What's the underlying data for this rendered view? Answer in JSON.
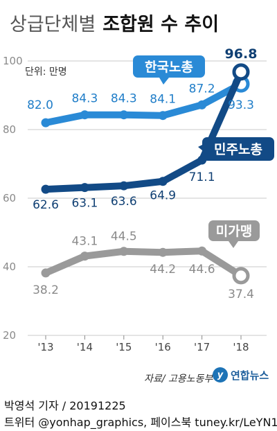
{
  "header": {
    "title_light": "상급단체별",
    "title_bold": "조합원 수 추이"
  },
  "chart_data": {
    "type": "line",
    "title": "상급단체별 조합원 수 추이",
    "unit_label": "단위: 만명",
    "categories": [
      "'13",
      "'14",
      "'15",
      "'16",
      "'17",
      "'18"
    ],
    "ylim": [
      20,
      100
    ],
    "yticks": [
      20,
      40,
      60,
      80,
      100
    ],
    "grid": true,
    "series": [
      {
        "name": "한국노총",
        "values": [
          82.0,
          84.3,
          84.3,
          84.1,
          87.2,
          93.3
        ],
        "labels": [
          "82.0",
          "84.3",
          "84.3",
          "84.1",
          "87.2",
          "93.3"
        ],
        "color": "#2a8ad6",
        "label_color": "#1f7dc8"
      },
      {
        "name": "민주노총",
        "values": [
          62.6,
          63.1,
          63.6,
          64.9,
          71.1,
          96.8
        ],
        "labels": [
          "62.6",
          "63.1",
          "63.6",
          "64.9",
          "71.1",
          "96.8"
        ],
        "color": "#124a86",
        "label_color": "#0f3f73"
      },
      {
        "name": "미가맹",
        "values": [
          38.2,
          43.1,
          44.5,
          44.2,
          44.6,
          37.4
        ],
        "labels": [
          "38.2",
          "43.1",
          "44.5",
          "44.2",
          "44.6",
          "37.4"
        ],
        "color": "#9a9a9a",
        "label_color": "#8a8a8a"
      }
    ]
  },
  "footer": {
    "source": "자료/ 고용노동부",
    "logo_text": "연합뉴스",
    "byline": "박영석 기자 /  20191225",
    "social": "트위터 @yonhap_graphics, 페이스북 tuney.kr/LeYN1"
  }
}
